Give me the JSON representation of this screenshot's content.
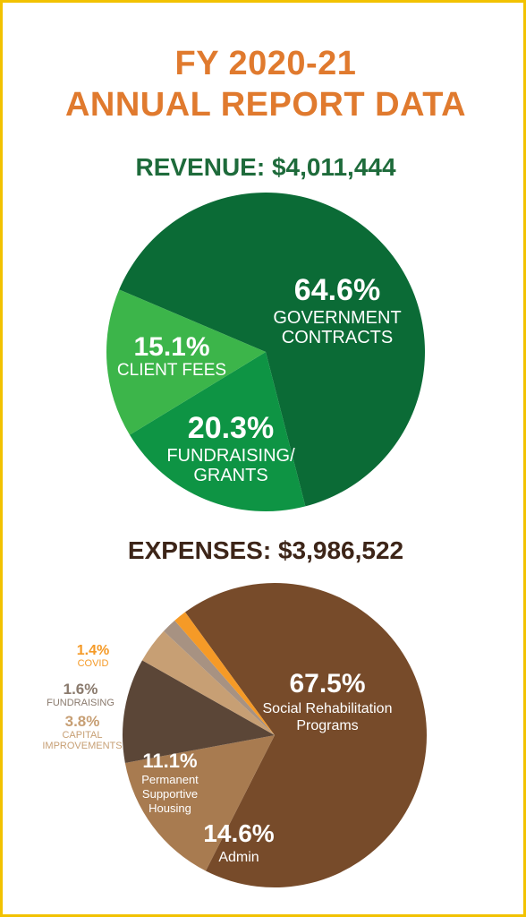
{
  "header": {
    "title_line1": "FY 2020-21",
    "title_line2": "ANNUAL REPORT DATA"
  },
  "colors": {
    "title_orange": "#e07a2e",
    "revenue_green": "#1e6b3b",
    "expense_brown": "#3d2518",
    "border_yellow": "#f2c200"
  },
  "chart_data": [
    {
      "type": "pie",
      "title": "REVENUE: $4,011,444",
      "slices": [
        {
          "pct_label": "64.6%",
          "value": 64.6,
          "label_lines": [
            "GOVERNMENT",
            "CONTRACTS"
          ],
          "color": "#0b6b36"
        },
        {
          "pct_label": "20.3%",
          "value": 20.3,
          "label_lines": [
            "FUNDRAISING/",
            "GRANTS"
          ],
          "color": "#0e9444"
        },
        {
          "pct_label": "15.1%",
          "value": 15.1,
          "label_lines": [
            "CLIENT FEES"
          ],
          "color": "#3cb54a"
        }
      ]
    },
    {
      "type": "pie",
      "title": "EXPENSES: $3,986,522",
      "slices": [
        {
          "pct_label": "67.5%",
          "value": 67.5,
          "label_lines": [
            "Social Rehabilitation",
            "Programs"
          ],
          "color": "#774b2a"
        },
        {
          "pct_label": "14.6%",
          "value": 14.6,
          "label_lines": [
            "Admin"
          ],
          "color": "#a87b50"
        },
        {
          "pct_label": "11.1%",
          "value": 11.1,
          "label_lines": [
            "Permanent",
            "Supportive",
            "Housing"
          ],
          "color": "#5b4637"
        },
        {
          "pct_label": "3.8%",
          "value": 3.8,
          "label_lines": [
            "CAPITAL",
            "IMPROVEMENTS"
          ],
          "color": "#c79f74"
        },
        {
          "pct_label": "1.6%",
          "value": 1.6,
          "label_lines": [
            "FUNDRAISING"
          ],
          "color": "#a79282"
        },
        {
          "pct_label": "1.4%",
          "value": 1.4,
          "label_lines": [
            "COVID"
          ],
          "color": "#f59a27"
        }
      ]
    }
  ]
}
